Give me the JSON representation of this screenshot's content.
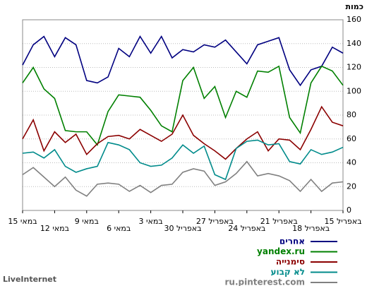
{
  "chart_data": {
    "type": "line",
    "y_label": "כמות",
    "categories": [
      "15 במאי",
      null,
      null,
      "12 במאי",
      null,
      null,
      "9 במאי",
      null,
      null,
      "6 במאי",
      null,
      null,
      "3 במאי",
      null,
      null,
      "30 באפריל",
      null,
      null,
      "27 באפריל",
      null,
      null,
      "24 באפריל",
      null,
      null,
      "21 באפריל",
      null,
      null,
      "18 באפריל",
      null,
      null,
      "15 באפריל"
    ],
    "series": [
      {
        "name": "אחרים",
        "color": "#000080",
        "values": [
          122,
          139,
          146,
          129,
          145,
          139,
          109,
          107,
          112,
          136,
          129,
          146,
          132,
          146,
          128,
          135,
          133,
          139,
          137,
          143,
          133,
          123,
          139,
          142,
          145,
          118,
          105,
          118,
          121,
          137,
          132
        ]
      },
      {
        "name": "yandex.ru",
        "color": "#008000",
        "values": [
          107,
          120,
          102,
          94,
          67,
          66,
          66,
          55,
          83,
          97,
          96,
          95,
          84,
          71,
          66,
          109,
          120,
          94,
          104,
          78,
          100,
          95,
          117,
          116,
          121,
          78,
          65,
          107,
          121,
          117,
          105
        ]
      },
      {
        "name": "סימנייה",
        "color": "#8b0000",
        "values": [
          60,
          76,
          50,
          66,
          57,
          64,
          47,
          56,
          62,
          63,
          60,
          68,
          63,
          58,
          64,
          80,
          63,
          56,
          50,
          43,
          52,
          60,
          66,
          50,
          60,
          59,
          51,
          68,
          87,
          74,
          71
        ]
      },
      {
        "name": "לא קבוע",
        "color": "#008b8b",
        "values": [
          48,
          49,
          44,
          51,
          37,
          32,
          35,
          37,
          57,
          55,
          51,
          40,
          37,
          38,
          44,
          55,
          48,
          54,
          30,
          26,
          52,
          58,
          59,
          55,
          56,
          41,
          39,
          51,
          47,
          49,
          53
        ]
      },
      {
        "name": "ru.pinterest.com",
        "color": "#808080",
        "values": [
          30,
          36,
          28,
          20,
          28,
          17,
          12,
          22,
          23,
          22,
          16,
          21,
          15,
          21,
          22,
          32,
          35,
          33,
          21,
          24,
          31,
          41,
          29,
          31,
          29,
          25,
          16,
          26,
          16,
          23,
          24
        ]
      }
    ],
    "ylim": [
      0,
      160
    ],
    "yticks": [
      0,
      20,
      40,
      60,
      80,
      100,
      120,
      140,
      160
    ],
    "grid": true
  },
  "source": "LiveInternet"
}
